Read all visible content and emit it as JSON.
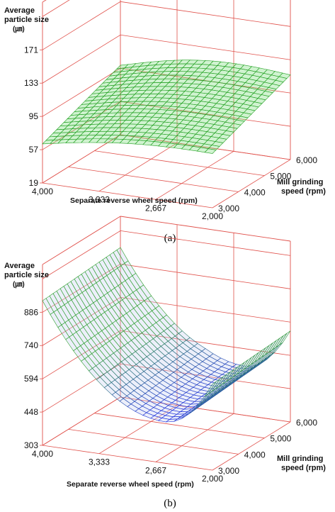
{
  "chart_data": [
    {
      "type": "surface3d",
      "panel_label": "(a)",
      "zlabel_lines": [
        "Average",
        "particle size",
        "(㎛)"
      ],
      "xlabel": "Separate reverse wheel speed (rpm)",
      "ylabel_lines": [
        "Mill grinding",
        "speed (rpm)"
      ],
      "x_ticks": [
        "4,000",
        "3,333",
        "2,667",
        "2,000"
      ],
      "y_ticks": [
        "3,000",
        "4,000",
        "5,000",
        "6,000"
      ],
      "z_ticks": [
        "19",
        "57",
        "95",
        "133",
        "171"
      ],
      "x_range": [
        4000,
        2000
      ],
      "y_range": [
        3000,
        6000
      ],
      "z_range": [
        19,
        209
      ],
      "surface_z_corners": {
        "x0y0": 60,
        "x1y0": 82,
        "x0y1": 92,
        "x1y1": 108
      },
      "surface_color": "#22a022",
      "grid": true
    },
    {
      "type": "surface3d",
      "panel_label": "(b)",
      "zlabel_lines": [
        "Average",
        "particle size",
        "(㎛)"
      ],
      "xlabel": "Separate reverse wheel speed (rpm)",
      "ylabel_lines": [
        "Mill grinding",
        "speed (rpm)"
      ],
      "x_ticks": [
        "4,000",
        "3,333",
        "2,667",
        "2,000"
      ],
      "y_ticks": [
        "3,000",
        "4,000",
        "5,000",
        "6,000"
      ],
      "z_ticks": [
        "303",
        "448",
        "594",
        "740",
        "886"
      ],
      "x_range": [
        4000,
        2000
      ],
      "y_range": [
        3000,
        6000
      ],
      "z_range": [
        303,
        1032
      ],
      "surface_curve_z": {
        "start": 886,
        "minimum": 470,
        "end": 650
      },
      "surface_color_low": "#1f2fe0",
      "surface_color_high": "#2ea02e",
      "grid": true
    }
  ]
}
